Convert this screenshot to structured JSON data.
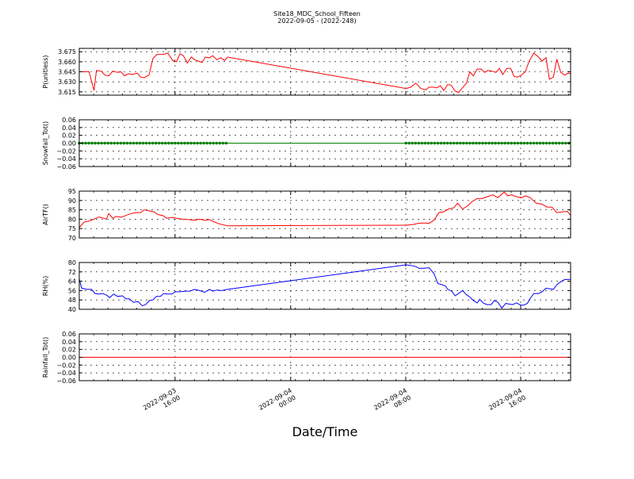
{
  "chart_data": {
    "type": "line",
    "title_line1": "Site18_MDC_School_Fifteen",
    "title_line2": "2022-09-05 - (2022-248)",
    "xlabel": "Date/Time",
    "x_ticks": [
      {
        "l1": "2022-09-03",
        "l2": "16:00",
        "t": 0.195
      },
      {
        "l1": "2022-09-04",
        "l2": "00:00",
        "t": 0.4303
      },
      {
        "l1": "2022-09-04",
        "l2": "08:00",
        "t": 0.6645
      },
      {
        "l1": "2022-09-04",
        "l2": "16:00",
        "t": 0.8984
      }
    ],
    "grid": true,
    "panels": [
      {
        "ylabel": "P(unitless)",
        "color": "#ff0000",
        "ylim": [
          3.61,
          3.68
        ],
        "yticks": [
          "3.615",
          "3.630",
          "3.645",
          "3.660",
          "3.675"
        ],
        "ytick_values": [
          3.615,
          3.63,
          3.645,
          3.66,
          3.675
        ],
        "markers": false,
        "series": [
          {
            "t": 0.0,
            "v": 3.645
          },
          {
            "t": 0.02,
            "v": 3.645
          },
          {
            "t": 0.03,
            "v": 3.617
          },
          {
            "t": 0.035,
            "v": 3.647
          },
          {
            "t": 0.045,
            "v": 3.646
          },
          {
            "t": 0.052,
            "v": 3.64
          },
          {
            "t": 0.06,
            "v": 3.639
          },
          {
            "t": 0.068,
            "v": 3.646
          },
          {
            "t": 0.078,
            "v": 3.644
          },
          {
            "t": 0.085,
            "v": 3.645
          },
          {
            "t": 0.092,
            "v": 3.639
          },
          {
            "t": 0.1,
            "v": 3.642
          },
          {
            "t": 0.108,
            "v": 3.641
          },
          {
            "t": 0.118,
            "v": 3.643
          },
          {
            "t": 0.125,
            "v": 3.637
          },
          {
            "t": 0.132,
            "v": 3.636
          },
          {
            "t": 0.142,
            "v": 3.64
          },
          {
            "t": 0.15,
            "v": 3.665
          },
          {
            "t": 0.158,
            "v": 3.671
          },
          {
            "t": 0.172,
            "v": 3.671
          },
          {
            "t": 0.18,
            "v": 3.673
          },
          {
            "t": 0.19,
            "v": 3.662
          },
          {
            "t": 0.198,
            "v": 3.66
          },
          {
            "t": 0.205,
            "v": 3.672
          },
          {
            "t": 0.212,
            "v": 3.669
          },
          {
            "t": 0.22,
            "v": 3.658
          },
          {
            "t": 0.228,
            "v": 3.667
          },
          {
            "t": 0.235,
            "v": 3.663
          },
          {
            "t": 0.242,
            "v": 3.661
          },
          {
            "t": 0.25,
            "v": 3.659
          },
          {
            "t": 0.257,
            "v": 3.667
          },
          {
            "t": 0.265,
            "v": 3.666
          },
          {
            "t": 0.272,
            "v": 3.669
          },
          {
            "t": 0.28,
            "v": 3.663
          },
          {
            "t": 0.288,
            "v": 3.666
          },
          {
            "t": 0.296,
            "v": 3.662
          },
          {
            "t": 0.302,
            "v": 3.667
          },
          {
            "t": 0.665,
            "v": 3.62
          },
          {
            "t": 0.675,
            "v": 3.622
          },
          {
            "t": 0.685,
            "v": 3.628
          },
          {
            "t": 0.695,
            "v": 3.62
          },
          {
            "t": 0.705,
            "v": 3.618
          },
          {
            "t": 0.712,
            "v": 3.622
          },
          {
            "t": 0.72,
            "v": 3.622
          },
          {
            "t": 0.728,
            "v": 3.621
          },
          {
            "t": 0.735,
            "v": 3.624
          },
          {
            "t": 0.742,
            "v": 3.617
          },
          {
            "t": 0.75,
            "v": 3.626
          },
          {
            "t": 0.757,
            "v": 3.625
          },
          {
            "t": 0.765,
            "v": 3.616
          },
          {
            "t": 0.772,
            "v": 3.614
          },
          {
            "t": 0.78,
            "v": 3.621
          },
          {
            "t": 0.788,
            "v": 3.628
          },
          {
            "t": 0.795,
            "v": 3.645
          },
          {
            "t": 0.802,
            "v": 3.639
          },
          {
            "t": 0.81,
            "v": 3.649
          },
          {
            "t": 0.818,
            "v": 3.649
          },
          {
            "t": 0.825,
            "v": 3.644
          },
          {
            "t": 0.832,
            "v": 3.647
          },
          {
            "t": 0.84,
            "v": 3.646
          },
          {
            "t": 0.848,
            "v": 3.644
          },
          {
            "t": 0.855,
            "v": 3.65
          },
          {
            "t": 0.862,
            "v": 3.641
          },
          {
            "t": 0.87,
            "v": 3.65
          },
          {
            "t": 0.878,
            "v": 3.65
          },
          {
            "t": 0.885,
            "v": 3.638
          },
          {
            "t": 0.892,
            "v": 3.637
          },
          {
            "t": 0.9,
            "v": 3.64
          },
          {
            "t": 0.908,
            "v": 3.645
          },
          {
            "t": 0.915,
            "v": 3.66
          },
          {
            "t": 0.925,
            "v": 3.673
          },
          {
            "t": 0.935,
            "v": 3.667
          },
          {
            "t": 0.942,
            "v": 3.661
          },
          {
            "t": 0.95,
            "v": 3.666
          },
          {
            "t": 0.957,
            "v": 3.634
          },
          {
            "t": 0.965,
            "v": 3.637
          },
          {
            "t": 0.972,
            "v": 3.664
          },
          {
            "t": 0.98,
            "v": 3.644
          },
          {
            "t": 0.988,
            "v": 3.64
          },
          {
            "t": 0.995,
            "v": 3.643
          },
          {
            "t": 1.0,
            "v": 3.642
          }
        ]
      },
      {
        "ylabel": "Snowfall_Tot()",
        "color": "#008000",
        "ylim": [
          -0.06,
          0.06
        ],
        "yticks": [
          "−0.06",
          "−0.04",
          "−0.02",
          "0.00",
          "0.02",
          "0.04",
          "0.06"
        ],
        "ytick_values": [
          -0.06,
          -0.04,
          -0.02,
          0.0,
          0.02,
          0.04,
          0.06
        ],
        "markers": true,
        "constant_value": 0.0,
        "marker_ranges": [
          [
            0.0,
            0.302
          ],
          [
            0.665,
            1.0
          ]
        ]
      },
      {
        "ylabel": "AirTF()",
        "color": "#ff0000",
        "ylim": [
          70,
          95
        ],
        "yticks": [
          "70",
          "75",
          "80",
          "85",
          "90",
          "95"
        ],
        "ytick_values": [
          70,
          75,
          80,
          85,
          90,
          95
        ],
        "markers": false,
        "series": [
          {
            "t": 0.0,
            "v": 75.5
          },
          {
            "t": 0.01,
            "v": 78.5
          },
          {
            "t": 0.02,
            "v": 79
          },
          {
            "t": 0.03,
            "v": 80
          },
          {
            "t": 0.04,
            "v": 81.2
          },
          {
            "t": 0.05,
            "v": 80.5
          },
          {
            "t": 0.055,
            "v": 80
          },
          {
            "t": 0.06,
            "v": 83
          },
          {
            "t": 0.068,
            "v": 80.5
          },
          {
            "t": 0.075,
            "v": 81.5
          },
          {
            "t": 0.085,
            "v": 81
          },
          {
            "t": 0.095,
            "v": 82
          },
          {
            "t": 0.105,
            "v": 83
          },
          {
            "t": 0.115,
            "v": 83.5
          },
          {
            "t": 0.125,
            "v": 83.5
          },
          {
            "t": 0.132,
            "v": 85
          },
          {
            "t": 0.142,
            "v": 84.5
          },
          {
            "t": 0.152,
            "v": 84
          },
          {
            "t": 0.16,
            "v": 82.5
          },
          {
            "t": 0.17,
            "v": 82
          },
          {
            "t": 0.178,
            "v": 80.5
          },
          {
            "t": 0.188,
            "v": 81
          },
          {
            "t": 0.198,
            "v": 80.5
          },
          {
            "t": 0.21,
            "v": 80
          },
          {
            "t": 0.222,
            "v": 79.8
          },
          {
            "t": 0.235,
            "v": 79.5
          },
          {
            "t": 0.245,
            "v": 80
          },
          {
            "t": 0.255,
            "v": 79.5
          },
          {
            "t": 0.265,
            "v": 79.8
          },
          {
            "t": 0.275,
            "v": 78.5
          },
          {
            "t": 0.285,
            "v": 77.5
          },
          {
            "t": 0.302,
            "v": 76.5
          },
          {
            "t": 0.665,
            "v": 76.8
          },
          {
            "t": 0.68,
            "v": 77.2
          },
          {
            "t": 0.69,
            "v": 77.8
          },
          {
            "t": 0.7,
            "v": 78
          },
          {
            "t": 0.712,
            "v": 77.8
          },
          {
            "t": 0.722,
            "v": 79.5
          },
          {
            "t": 0.732,
            "v": 83.5
          },
          {
            "t": 0.742,
            "v": 84
          },
          {
            "t": 0.752,
            "v": 85.5
          },
          {
            "t": 0.762,
            "v": 86
          },
          {
            "t": 0.77,
            "v": 88.5
          },
          {
            "t": 0.78,
            "v": 85.5
          },
          {
            "t": 0.79,
            "v": 87
          },
          {
            "t": 0.8,
            "v": 89.5
          },
          {
            "t": 0.81,
            "v": 91
          },
          {
            "t": 0.82,
            "v": 91
          },
          {
            "t": 0.83,
            "v": 92
          },
          {
            "t": 0.842,
            "v": 93
          },
          {
            "t": 0.852,
            "v": 91.5
          },
          {
            "t": 0.865,
            "v": 94.5
          },
          {
            "t": 0.872,
            "v": 92.5
          },
          {
            "t": 0.88,
            "v": 93
          },
          {
            "t": 0.89,
            "v": 92
          },
          {
            "t": 0.9,
            "v": 91.5
          },
          {
            "t": 0.908,
            "v": 92.5
          },
          {
            "t": 0.918,
            "v": 91.5
          },
          {
            "t": 0.93,
            "v": 88.5
          },
          {
            "t": 0.942,
            "v": 88
          },
          {
            "t": 0.952,
            "v": 86.5
          },
          {
            "t": 0.962,
            "v": 86.5
          },
          {
            "t": 0.972,
            "v": 83.5
          },
          {
            "t": 0.985,
            "v": 84
          },
          {
            "t": 0.993,
            "v": 84.2
          },
          {
            "t": 1.0,
            "v": 82
          }
        ]
      },
      {
        "ylabel": "RH(%)",
        "color": "#0000ff",
        "ylim": [
          40,
          80
        ],
        "yticks": [
          "40",
          "48",
          "56",
          "64",
          "72",
          "80"
        ],
        "ytick_values": [
          40,
          48,
          56,
          64,
          72,
          80
        ],
        "markers": false,
        "series": [
          {
            "t": 0.0,
            "v": 66
          },
          {
            "t": 0.005,
            "v": 58
          },
          {
            "t": 0.015,
            "v": 57
          },
          {
            "t": 0.025,
            "v": 57
          },
          {
            "t": 0.032,
            "v": 53.5
          },
          {
            "t": 0.04,
            "v": 53
          },
          {
            "t": 0.048,
            "v": 53.5
          },
          {
            "t": 0.056,
            "v": 52
          },
          {
            "t": 0.062,
            "v": 50
          },
          {
            "t": 0.07,
            "v": 53
          },
          {
            "t": 0.078,
            "v": 51
          },
          {
            "t": 0.088,
            "v": 51.5
          },
          {
            "t": 0.095,
            "v": 49
          },
          {
            "t": 0.102,
            "v": 49
          },
          {
            "t": 0.11,
            "v": 46
          },
          {
            "t": 0.12,
            "v": 46.5
          },
          {
            "t": 0.128,
            "v": 43
          },
          {
            "t": 0.135,
            "v": 44
          },
          {
            "t": 0.143,
            "v": 47.5
          },
          {
            "t": 0.15,
            "v": 48
          },
          {
            "t": 0.157,
            "v": 51
          },
          {
            "t": 0.165,
            "v": 51
          },
          {
            "t": 0.172,
            "v": 53.5
          },
          {
            "t": 0.18,
            "v": 53
          },
          {
            "t": 0.188,
            "v": 53
          },
          {
            "t": 0.196,
            "v": 55
          },
          {
            "t": 0.205,
            "v": 55
          },
          {
            "t": 0.215,
            "v": 55.5
          },
          {
            "t": 0.225,
            "v": 55.5
          },
          {
            "t": 0.235,
            "v": 57
          },
          {
            "t": 0.245,
            "v": 56
          },
          {
            "t": 0.255,
            "v": 54.5
          },
          {
            "t": 0.265,
            "v": 57
          },
          {
            "t": 0.272,
            "v": 55.5
          },
          {
            "t": 0.28,
            "v": 56.5
          },
          {
            "t": 0.29,
            "v": 56
          },
          {
            "t": 0.302,
            "v": 57
          },
          {
            "t": 0.665,
            "v": 78
          },
          {
            "t": 0.675,
            "v": 77.5
          },
          {
            "t": 0.685,
            "v": 76.5
          },
          {
            "t": 0.692,
            "v": 75
          },
          {
            "t": 0.7,
            "v": 75
          },
          {
            "t": 0.712,
            "v": 75.5
          },
          {
            "t": 0.722,
            "v": 70.5
          },
          {
            "t": 0.73,
            "v": 62
          },
          {
            "t": 0.738,
            "v": 61
          },
          {
            "t": 0.745,
            "v": 60
          },
          {
            "t": 0.75,
            "v": 57
          },
          {
            "t": 0.758,
            "v": 55.5
          },
          {
            "t": 0.765,
            "v": 51.5
          },
          {
            "t": 0.772,
            "v": 53.5
          },
          {
            "t": 0.78,
            "v": 56
          },
          {
            "t": 0.788,
            "v": 52.5
          },
          {
            "t": 0.795,
            "v": 50.5
          },
          {
            "t": 0.802,
            "v": 47.5
          },
          {
            "t": 0.81,
            "v": 45.5
          },
          {
            "t": 0.815,
            "v": 48.5
          },
          {
            "t": 0.822,
            "v": 45.5
          },
          {
            "t": 0.83,
            "v": 44
          },
          {
            "t": 0.838,
            "v": 44
          },
          {
            "t": 0.845,
            "v": 47.5
          },
          {
            "t": 0.852,
            "v": 46
          },
          {
            "t": 0.86,
            "v": 41
          },
          {
            "t": 0.868,
            "v": 45
          },
          {
            "t": 0.875,
            "v": 44.5
          },
          {
            "t": 0.882,
            "v": 44
          },
          {
            "t": 0.89,
            "v": 45.5
          },
          {
            "t": 0.898,
            "v": 43.5
          },
          {
            "t": 0.905,
            "v": 43.5
          },
          {
            "t": 0.912,
            "v": 45
          },
          {
            "t": 0.918,
            "v": 49.5
          },
          {
            "t": 0.925,
            "v": 53.5
          },
          {
            "t": 0.935,
            "v": 53.5
          },
          {
            "t": 0.942,
            "v": 55
          },
          {
            "t": 0.95,
            "v": 58
          },
          {
            "t": 0.958,
            "v": 57.5
          },
          {
            "t": 0.965,
            "v": 57
          },
          {
            "t": 0.972,
            "v": 61
          },
          {
            "t": 0.98,
            "v": 63.5
          },
          {
            "t": 0.988,
            "v": 65.5
          },
          {
            "t": 1.0,
            "v": 65.5
          }
        ]
      },
      {
        "ylabel": "Rainfall_Tot()",
        "color": "#ff0000",
        "ylim": [
          -0.06,
          0.06
        ],
        "yticks": [
          "−0.06",
          "−0.04",
          "−0.02",
          "0.00",
          "0.02",
          "0.04",
          "0.06"
        ],
        "ytick_values": [
          -0.06,
          -0.04,
          -0.02,
          0.0,
          0.02,
          0.04,
          0.06
        ],
        "markers": false,
        "constant_value": 0.0
      }
    ]
  }
}
